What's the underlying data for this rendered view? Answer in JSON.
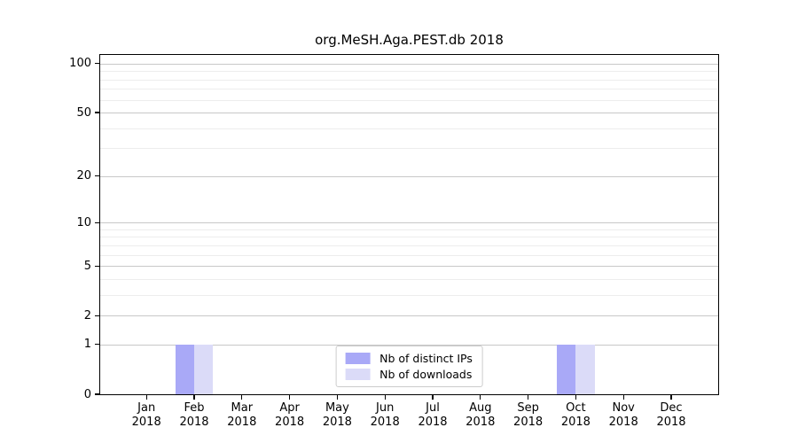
{
  "chart_data": {
    "type": "bar",
    "title": "org.MeSH.Aga.PEST.db 2018",
    "categories": [
      "Jan",
      "Feb",
      "Mar",
      "Apr",
      "May",
      "Jun",
      "Jul",
      "Aug",
      "Sep",
      "Oct",
      "Nov",
      "Dec"
    ],
    "year": "2018",
    "series": [
      {
        "name": "Nb of distinct IPs",
        "color": "#a9a9f7",
        "values": [
          0,
          1,
          0,
          0,
          0,
          0,
          0,
          0,
          0,
          1,
          0,
          0
        ]
      },
      {
        "name": "Nb of downloads",
        "color": "#dbdbf8",
        "values": [
          0,
          1,
          0,
          0,
          0,
          0,
          0,
          0,
          0,
          1,
          0,
          0
        ]
      }
    ],
    "xlabel": "",
    "ylabel": "",
    "y_axis": {
      "scale": "log1p",
      "ticks": [
        0,
        1,
        2,
        5,
        10,
        20,
        50,
        100
      ],
      "minor_ticks": [
        3,
        4,
        6,
        7,
        8,
        9,
        30,
        40,
        60,
        70,
        80,
        90
      ],
      "ylim": [
        0,
        113
      ]
    },
    "legend": {
      "position": "lower center",
      "entries": [
        "Nb of distinct IPs",
        "Nb of downloads"
      ]
    },
    "grid": {
      "major_color": "#c8c8c8",
      "minor_color": "#ededed"
    },
    "colors": {
      "axis": "#000000",
      "background": "#ffffff"
    }
  }
}
